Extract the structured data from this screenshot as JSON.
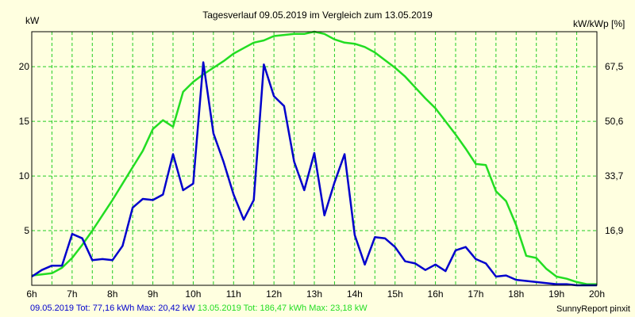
{
  "chart_data": {
    "type": "line",
    "title": "Tagesverlauf 09.05.2019 im Vergleich zum 13.05.2019",
    "ylabel": "kW",
    "y2label": "kW/kWp [%]",
    "xlabel": "",
    "x_ticks": [
      "6h",
      "7h",
      "8h",
      "9h",
      "10h",
      "11h",
      "12h",
      "13h",
      "14h",
      "15h",
      "16h",
      "17h",
      "18h",
      "19h",
      "20h"
    ],
    "y_ticks": [
      "5",
      "10",
      "15",
      "20"
    ],
    "y2_ticks": [
      "16,9",
      "33,7",
      "50,6",
      "67,5"
    ],
    "xlim": [
      6,
      20
    ],
    "ylim": [
      0,
      23.2
    ],
    "grid": true,
    "legend_position": "bottom-left",
    "series": [
      {
        "name": "09.05.2019",
        "summary": "09.05.2019 Tot: 77,16 kWh Max: 20,42 kW",
        "color": "#0000cc",
        "x": [
          6.0,
          6.25,
          6.5,
          6.75,
          7.0,
          7.25,
          7.5,
          7.75,
          8.0,
          8.25,
          8.5,
          8.75,
          9.0,
          9.25,
          9.5,
          9.75,
          10.0,
          10.25,
          10.5,
          10.75,
          11.0,
          11.25,
          11.5,
          11.75,
          12.0,
          12.25,
          12.5,
          12.75,
          13.0,
          13.25,
          13.5,
          13.75,
          14.0,
          14.25,
          14.5,
          14.75,
          15.0,
          15.25,
          15.5,
          15.75,
          16.0,
          16.25,
          16.5,
          16.75,
          17.0,
          17.25,
          17.5,
          17.75,
          18.0,
          18.25,
          18.5,
          18.75,
          19.0,
          19.25,
          19.5,
          19.75,
          20.0
        ],
        "y": [
          0.8,
          1.4,
          1.8,
          1.8,
          4.7,
          4.3,
          2.3,
          2.4,
          2.3,
          3.6,
          7.1,
          7.9,
          7.8,
          8.3,
          12.0,
          8.7,
          9.3,
          20.4,
          13.9,
          11.3,
          8.3,
          6.0,
          7.8,
          20.2,
          17.3,
          16.4,
          11.3,
          8.7,
          12.1,
          6.4,
          9.4,
          12.0,
          4.6,
          1.9,
          4.4,
          4.3,
          3.5,
          2.2,
          2.0,
          1.4,
          1.9,
          1.3,
          3.2,
          3.5,
          2.4,
          2.0,
          0.8,
          0.9,
          0.5,
          0.4,
          0.3,
          0.2,
          0.1,
          0.1,
          0.0,
          0.0,
          0.0
        ]
      },
      {
        "name": "13.05.2019",
        "summary": "13.05.2019 Tot: 186,47 kWh Max: 23,18 kW",
        "color": "#22dd22",
        "x": [
          6.0,
          6.25,
          6.5,
          6.75,
          7.0,
          7.25,
          7.5,
          7.75,
          8.0,
          8.25,
          8.5,
          8.75,
          9.0,
          9.25,
          9.5,
          9.75,
          10.0,
          10.25,
          10.5,
          10.75,
          11.0,
          11.25,
          11.5,
          11.75,
          12.0,
          12.25,
          12.5,
          12.75,
          13.0,
          13.25,
          13.5,
          13.75,
          14.0,
          14.25,
          14.5,
          14.75,
          15.0,
          15.25,
          15.5,
          15.75,
          16.0,
          16.25,
          16.5,
          16.75,
          17.0,
          17.25,
          17.5,
          17.75,
          18.0,
          18.25,
          18.5,
          18.75,
          19.0,
          19.25,
          19.5,
          19.75,
          20.0
        ],
        "y": [
          0.9,
          1.0,
          1.1,
          1.6,
          2.5,
          3.7,
          5.0,
          6.4,
          7.8,
          9.3,
          10.8,
          12.3,
          14.3,
          15.1,
          14.5,
          17.7,
          18.6,
          19.3,
          19.9,
          20.5,
          21.2,
          21.7,
          22.2,
          22.4,
          22.8,
          22.9,
          23.0,
          23.0,
          23.2,
          23.0,
          22.5,
          22.2,
          22.1,
          21.8,
          21.3,
          20.6,
          19.9,
          19.1,
          18.1,
          17.1,
          16.2,
          15.0,
          13.8,
          12.5,
          11.1,
          11.0,
          8.6,
          7.7,
          5.5,
          2.7,
          2.5,
          1.5,
          0.8,
          0.6,
          0.3,
          0.1,
          0.1
        ]
      }
    ]
  },
  "footer": {
    "credit": "SunnyReport pinxit"
  }
}
